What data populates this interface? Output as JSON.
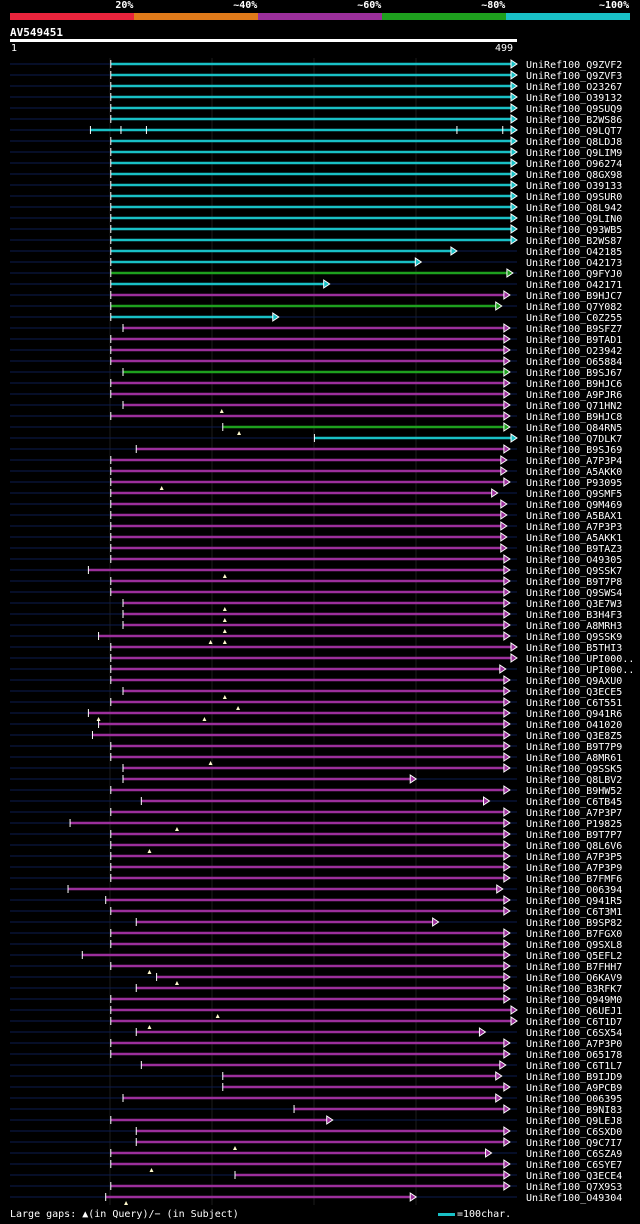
{
  "header": {
    "segments": [
      {
        "label": "20%",
        "color": "#e8243c"
      },
      {
        "label": "~40%",
        "color": "#e07a1a"
      },
      {
        "label": "~60%",
        "color": "#9b2f9b"
      },
      {
        "label": "~80%",
        "color": "#1ea01e"
      },
      {
        "label": "~100%",
        "color": "#19c0c6"
      }
    ]
  },
  "query": {
    "name": "AV549451",
    "start": "1",
    "end": "499",
    "length": 499
  },
  "chart_data": {
    "type": "alignment",
    "query_length": 499,
    "hits": [
      {
        "name": "UniRef100_Q9ZVF2",
        "start": 100,
        "end": 499,
        "color": "cyan"
      },
      {
        "name": "UniRef100_Q9ZVF3",
        "start": 100,
        "end": 499,
        "color": "cyan"
      },
      {
        "name": "UniRef100_O23267",
        "start": 100,
        "end": 499,
        "color": "cyan"
      },
      {
        "name": "UniRef100_O39132",
        "start": 100,
        "end": 499,
        "color": "cyan"
      },
      {
        "name": "UniRef100_Q9SUQ9",
        "start": 100,
        "end": 499,
        "color": "cyan"
      },
      {
        "name": "UniRef100_B2WS86",
        "start": 100,
        "end": 499,
        "color": "cyan"
      },
      {
        "name": "UniRef100_Q9LQT7",
        "start": 80,
        "end": 499,
        "color": "cyan",
        "ticks": [
          110,
          135,
          440,
          485
        ]
      },
      {
        "name": "UniRef100_Q8LDJ8",
        "start": 100,
        "end": 499,
        "color": "cyan"
      },
      {
        "name": "UniRef100_Q9LIM9",
        "start": 100,
        "end": 499,
        "color": "cyan"
      },
      {
        "name": "UniRef100_O96274",
        "start": 100,
        "end": 499,
        "color": "cyan"
      },
      {
        "name": "UniRef100_Q8GX98",
        "start": 100,
        "end": 499,
        "color": "cyan"
      },
      {
        "name": "UniRef100_O39133",
        "start": 100,
        "end": 499,
        "color": "cyan"
      },
      {
        "name": "UniRef100_Q9SUR0",
        "start": 100,
        "end": 499,
        "color": "cyan"
      },
      {
        "name": "UniRef100_Q8L942",
        "start": 100,
        "end": 499,
        "color": "cyan"
      },
      {
        "name": "UniRef100_Q9LIN0",
        "start": 100,
        "end": 499,
        "color": "cyan"
      },
      {
        "name": "UniRef100_Q93WB5",
        "start": 100,
        "end": 499,
        "color": "cyan"
      },
      {
        "name": "UniRef100_B2WS87",
        "start": 100,
        "end": 499,
        "color": "cyan"
      },
      {
        "name": "UniRef100_O42185",
        "start": 100,
        "end": 440,
        "color": "cyan"
      },
      {
        "name": "UniRef100_O42173",
        "start": 100,
        "end": 405,
        "color": "cyan"
      },
      {
        "name": "UniRef100_Q9FYJ0",
        "start": 100,
        "end": 495,
        "color": "green"
      },
      {
        "name": "UniRef100_O42171",
        "start": 100,
        "end": 315,
        "color": "cyan"
      },
      {
        "name": "UniRef100_B9HJC7",
        "start": 100,
        "end": 492,
        "color": "purple"
      },
      {
        "name": "UniRef100_Q7Y082",
        "start": 100,
        "end": 484,
        "color": "green"
      },
      {
        "name": "UniRef100_C0Z255",
        "start": 100,
        "end": 265,
        "color": "cyan"
      },
      {
        "name": "UniRef100_B9SFZ7",
        "start": 112,
        "end": 492,
        "color": "purple"
      },
      {
        "name": "UniRef100_B9TAD1",
        "start": 100,
        "end": 492,
        "color": "purple"
      },
      {
        "name": "UniRef100_O23942",
        "start": 100,
        "end": 492,
        "color": "purple"
      },
      {
        "name": "UniRef100_O65884",
        "start": 100,
        "end": 492,
        "color": "purple"
      },
      {
        "name": "UniRef100_B9SJ67",
        "start": 112,
        "end": 492,
        "color": "green"
      },
      {
        "name": "UniRef100_B9HJC6",
        "start": 100,
        "end": 492,
        "color": "purple"
      },
      {
        "name": "UniRef100_A9PJR6",
        "start": 100,
        "end": 492,
        "color": "purple"
      },
      {
        "name": "UniRef100_Q71HN2",
        "start": 112,
        "end": 492,
        "color": "purple",
        "marks": [
          209
        ]
      },
      {
        "name": "UniRef100_B9HJC8",
        "start": 100,
        "end": 492,
        "color": "purple"
      },
      {
        "name": "UniRef100_Q84RN5",
        "start": 210,
        "end": 492,
        "color": "green",
        "marks": [
          226
        ]
      },
      {
        "name": "UniRef100_Q7DLK7",
        "start": 300,
        "end": 499,
        "color": "cyan"
      },
      {
        "name": "UniRef100_B9SJ69",
        "start": 125,
        "end": 492,
        "color": "purple"
      },
      {
        "name": "UniRef100_A7P3P4",
        "start": 100,
        "end": 489,
        "color": "purple"
      },
      {
        "name": "UniRef100_A5AKK0",
        "start": 100,
        "end": 489,
        "color": "purple"
      },
      {
        "name": "UniRef100_P93095",
        "start": 100,
        "end": 492,
        "color": "purple",
        "marks": [
          150
        ]
      },
      {
        "name": "UniRef100_Q9SMF5",
        "start": 100,
        "end": 480,
        "color": "purple"
      },
      {
        "name": "UniRef100_Q9M469",
        "start": 100,
        "end": 489,
        "color": "purple"
      },
      {
        "name": "UniRef100_A5BAX1",
        "start": 100,
        "end": 489,
        "color": "purple"
      },
      {
        "name": "UniRef100_A7P3P3",
        "start": 100,
        "end": 489,
        "color": "purple"
      },
      {
        "name": "UniRef100_A5AKK1",
        "start": 100,
        "end": 489,
        "color": "purple"
      },
      {
        "name": "UniRef100_B9TAZ3",
        "start": 100,
        "end": 489,
        "color": "purple"
      },
      {
        "name": "UniRef100_O49305",
        "start": 100,
        "end": 492,
        "color": "purple"
      },
      {
        "name": "UniRef100_Q9SSK7",
        "start": 78,
        "end": 492,
        "color": "purple",
        "marks": [
          212
        ]
      },
      {
        "name": "UniRef100_B9T7P8",
        "start": 100,
        "end": 492,
        "color": "purple"
      },
      {
        "name": "UniRef100_Q9SWS4",
        "start": 100,
        "end": 492,
        "color": "purple"
      },
      {
        "name": "UniRef100_Q3E7W3",
        "start": 112,
        "end": 492,
        "color": "purple",
        "marks": [
          212
        ]
      },
      {
        "name": "UniRef100_B3H4F3",
        "start": 112,
        "end": 492,
        "color": "purple",
        "marks": [
          212
        ]
      },
      {
        "name": "UniRef100_A8MRH3",
        "start": 112,
        "end": 492,
        "color": "purple",
        "marks": [
          212
        ]
      },
      {
        "name": "UniRef100_Q9SSK9",
        "start": 88,
        "end": 492,
        "color": "purple",
        "marks": [
          198,
          212
        ]
      },
      {
        "name": "UniRef100_B5THI3",
        "start": 100,
        "end": 499,
        "color": "purple"
      },
      {
        "name": "UniRef100_UPI000..",
        "start": 100,
        "end": 499,
        "color": "purple"
      },
      {
        "name": "UniRef100_UPI000..",
        "start": 100,
        "end": 488,
        "color": "purple"
      },
      {
        "name": "UniRef100_Q9AXU0",
        "start": 100,
        "end": 492,
        "color": "purple"
      },
      {
        "name": "UniRef100_Q3ECE5",
        "start": 112,
        "end": 492,
        "color": "purple",
        "marks": [
          212
        ]
      },
      {
        "name": "UniRef100_C6T551",
        "start": 100,
        "end": 492,
        "color": "purple",
        "marks": [
          225
        ]
      },
      {
        "name": "UniRef100_Q941R6",
        "start": 78,
        "end": 492,
        "color": "purple",
        "marks": [
          88,
          192
        ]
      },
      {
        "name": "UniRef100_O41020",
        "start": 88,
        "end": 492,
        "color": "purple"
      },
      {
        "name": "UniRef100_Q3E8Z5",
        "start": 82,
        "end": 492,
        "color": "purple"
      },
      {
        "name": "UniRef100_B9T7P9",
        "start": 100,
        "end": 492,
        "color": "purple"
      },
      {
        "name": "UniRef100_A8MR61",
        "start": 100,
        "end": 492,
        "color": "purple",
        "marks": [
          198
        ]
      },
      {
        "name": "UniRef100_Q9SSK5",
        "start": 112,
        "end": 492,
        "color": "purple"
      },
      {
        "name": "UniRef100_Q8LBV2",
        "start": 112,
        "end": 400,
        "color": "purple"
      },
      {
        "name": "UniRef100_B9HW52",
        "start": 100,
        "end": 492,
        "color": "purple"
      },
      {
        "name": "UniRef100_C6TB45",
        "start": 130,
        "end": 472,
        "color": "purple"
      },
      {
        "name": "UniRef100_A7P3P7",
        "start": 100,
        "end": 492,
        "color": "purple"
      },
      {
        "name": "UniRef100_P19825",
        "start": 60,
        "end": 492,
        "color": "purple",
        "marks": [
          165
        ]
      },
      {
        "name": "UniRef100_B9T7P7",
        "start": 100,
        "end": 492,
        "color": "purple"
      },
      {
        "name": "UniRef100_Q8L6V6",
        "start": 100,
        "end": 492,
        "color": "purple",
        "marks": [
          138
        ]
      },
      {
        "name": "UniRef100_A7P3P5",
        "start": 100,
        "end": 492,
        "color": "purple"
      },
      {
        "name": "UniRef100_A7P3P9",
        "start": 100,
        "end": 492,
        "color": "purple"
      },
      {
        "name": "UniRef100_B7FMF6",
        "start": 100,
        "end": 492,
        "color": "purple"
      },
      {
        "name": "UniRef100_O06394",
        "start": 58,
        "end": 485,
        "color": "purple"
      },
      {
        "name": "UniRef100_Q941R5",
        "start": 95,
        "end": 492,
        "color": "purple"
      },
      {
        "name": "UniRef100_C6T3M1",
        "start": 100,
        "end": 492,
        "color": "purple"
      },
      {
        "name": "UniRef100_B9SP82",
        "start": 125,
        "end": 422,
        "color": "purple"
      },
      {
        "name": "UniRef100_B7FGX0",
        "start": 100,
        "end": 492,
        "color": "purple"
      },
      {
        "name": "UniRef100_Q9SXL8",
        "start": 100,
        "end": 492,
        "color": "purple"
      },
      {
        "name": "UniRef100_Q5EFL2",
        "start": 72,
        "end": 492,
        "color": "purple"
      },
      {
        "name": "UniRef100_B7FHH7",
        "start": 100,
        "end": 492,
        "color": "purple",
        "marks": [
          138
        ]
      },
      {
        "name": "UniRef100_Q6KAV9",
        "start": 145,
        "end": 492,
        "color": "purple",
        "marks": [
          165
        ]
      },
      {
        "name": "UniRef100_B3RFK7",
        "start": 125,
        "end": 492,
        "color": "purple"
      },
      {
        "name": "UniRef100_Q949M0",
        "start": 100,
        "end": 492,
        "color": "purple"
      },
      {
        "name": "UniRef100_Q6UEJ1",
        "start": 100,
        "end": 499,
        "color": "purple",
        "marks": [
          205
        ]
      },
      {
        "name": "UniRef100_C6T1D7",
        "start": 100,
        "end": 499,
        "color": "purple",
        "marks": [
          138
        ]
      },
      {
        "name": "UniRef100_C6SX54",
        "start": 125,
        "end": 468,
        "color": "purple"
      },
      {
        "name": "UniRef100_A7P3P0",
        "start": 100,
        "end": 492,
        "color": "purple"
      },
      {
        "name": "UniRef100_O65178",
        "start": 100,
        "end": 492,
        "color": "purple"
      },
      {
        "name": "UniRef100_C6T1L7",
        "start": 130,
        "end": 488,
        "color": "purple"
      },
      {
        "name": "UniRef100_B9IJD9",
        "start": 210,
        "end": 484,
        "color": "purple"
      },
      {
        "name": "UniRef100_A9PCB9",
        "start": 210,
        "end": 492,
        "color": "purple"
      },
      {
        "name": "UniRef100_O06395",
        "start": 112,
        "end": 484,
        "color": "purple"
      },
      {
        "name": "UniRef100_B9NI83",
        "start": 280,
        "end": 492,
        "color": "purple"
      },
      {
        "name": "UniRef100_Q9LEJ8",
        "start": 100,
        "end": 318,
        "color": "purple"
      },
      {
        "name": "UniRef100_C6SXD0",
        "start": 125,
        "end": 492,
        "color": "purple"
      },
      {
        "name": "UniRef100_Q9C7I7",
        "start": 125,
        "end": 492,
        "color": "purple",
        "marks": [
          222
        ]
      },
      {
        "name": "UniRef100_C6SZA9",
        "start": 100,
        "end": 474,
        "color": "purple"
      },
      {
        "name": "UniRef100_C6SYE7",
        "start": 100,
        "end": 492,
        "color": "purple",
        "marks": [
          140
        ]
      },
      {
        "name": "UniRef100_Q3ECE4",
        "start": 222,
        "end": 492,
        "color": "purple"
      },
      {
        "name": "UniRef100_Q7X9S3",
        "start": 100,
        "end": 492,
        "color": "purple"
      },
      {
        "name": "UniRef100_O49304",
        "start": 95,
        "end": 400,
        "color": "purple",
        "marks": [
          115
        ]
      }
    ]
  },
  "footer": {
    "gaps_prefix": "Large gaps: ",
    "gaps_query": "▲(in Query)",
    "gaps_sep": "/",
    "gaps_subject": "− (in Subject)",
    "scale": "=100char."
  }
}
